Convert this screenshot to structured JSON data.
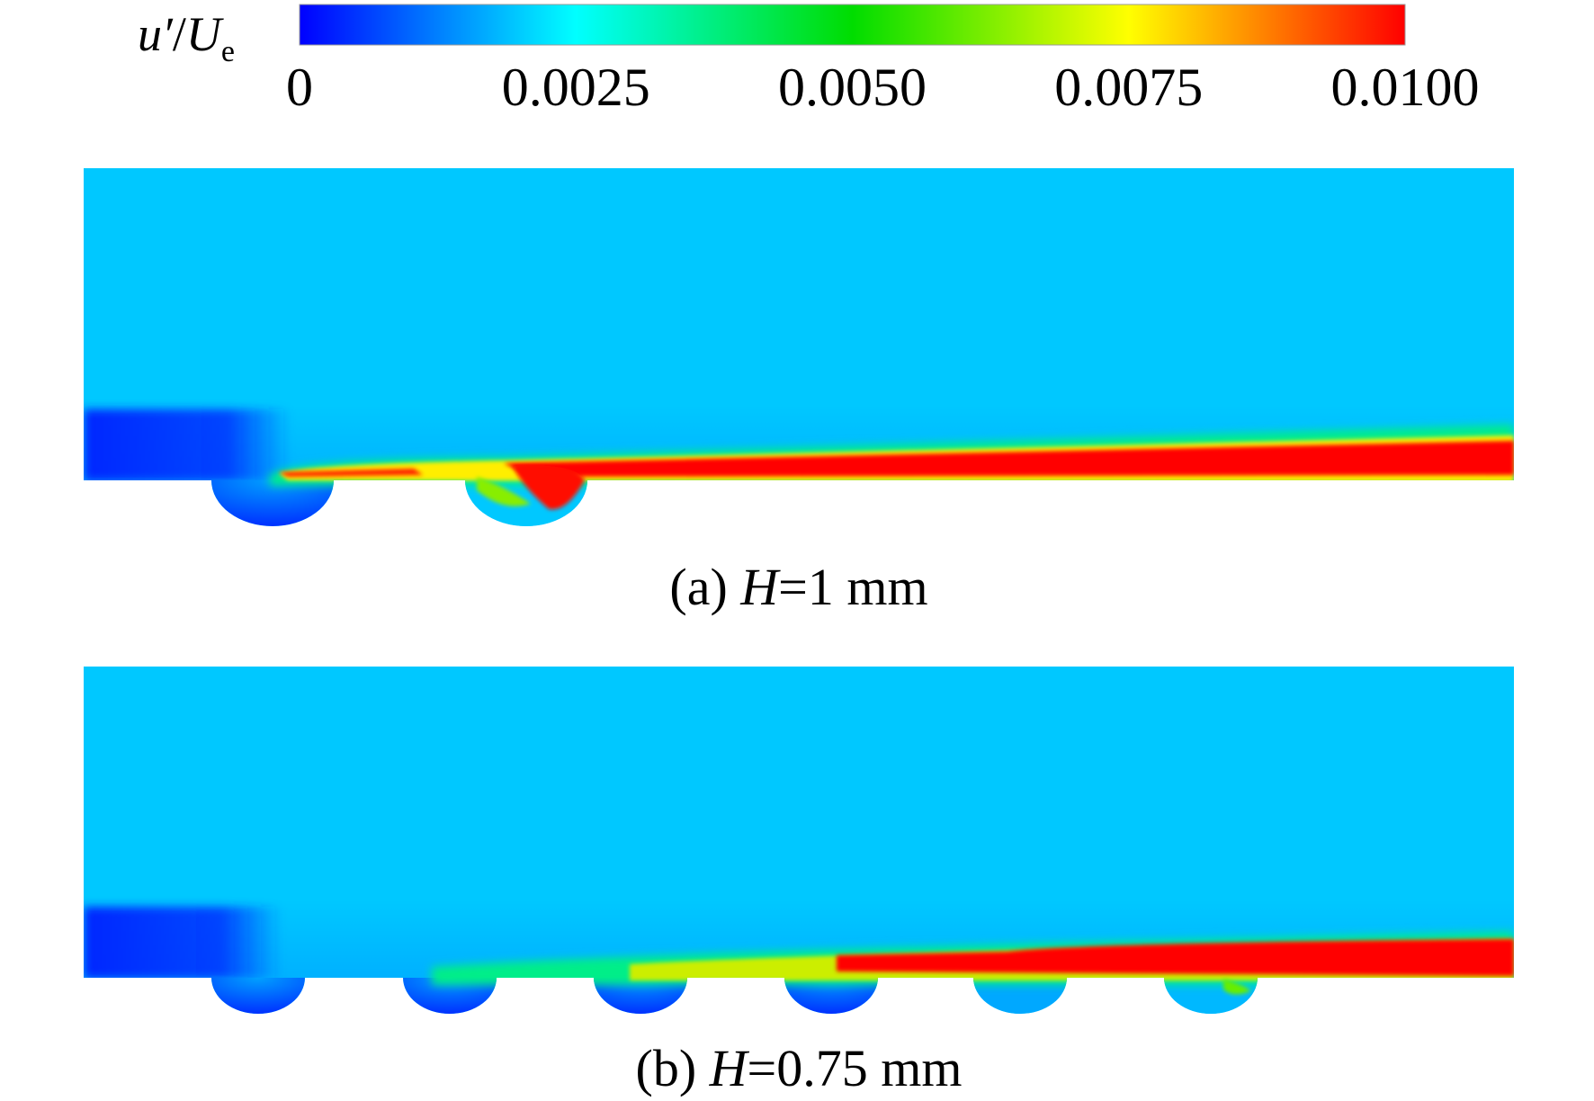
{
  "colorbar": {
    "label": {
      "symbol": "u′",
      "slash": "/",
      "denominator": "U",
      "subscript": "e"
    },
    "lim": [
      0,
      0.01
    ],
    "ticks": [
      0,
      0.0025,
      {
        "value": 0.005,
        "label": "0.0050"
      },
      0.0075,
      {
        "value": 0.01,
        "label": "0.0100"
      }
    ]
  },
  "panels": [
    {
      "caption": {
        "prefix": "(a) ",
        "variable": "H",
        "suffix": "=1 mm"
      }
    },
    {
      "caption": {
        "prefix": "(b) ",
        "variable": "H",
        "suffix": "=0.75 mm"
      }
    }
  ]
}
